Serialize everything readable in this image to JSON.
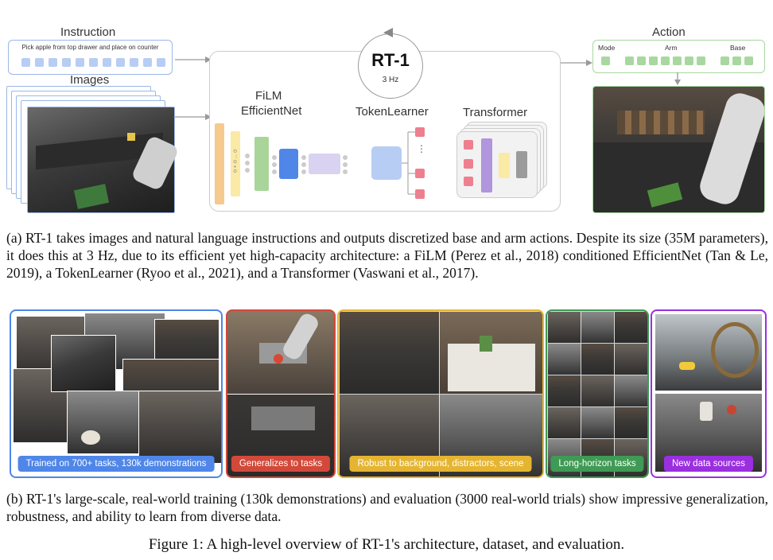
{
  "diagram": {
    "instruction": {
      "heading": "Instruction",
      "text": "Pick apple from top drawer and place on counter"
    },
    "images": {
      "heading": "Images"
    },
    "model": {
      "name": "RT-1",
      "rate": "3 Hz",
      "film_label_line1": "FiLM",
      "film_label_line2": "EfficientNet",
      "tokenlearner_label": "TokenLearner",
      "transformer_label": "Transformer",
      "film_vertical_text": "⊙ + ⊙ ... ⊙",
      "token_ellipsis": "⋮"
    },
    "action": {
      "heading": "Action",
      "mode_label": "Mode",
      "arm_label": "Arm",
      "base_label": "Base"
    },
    "colors": {
      "instruction_border": "#9ab8e6",
      "token_blue": "#b7cdf3",
      "action_green": "#a8d8a0",
      "film_orange": "#f6c98e",
      "film_yellow": "#fbe9a6",
      "film_green": "#a9d59a",
      "film_blue": "#4f86e8",
      "film_lavender": "#d9d2f0",
      "token_pink": "#ee7f8f",
      "transformer_purple": "#b195dd",
      "transformer_yellow": "#fbe9a6",
      "transformer_gray": "#9b9b9b"
    }
  },
  "caption_a": "(a) RT-1 takes images and natural language instructions and outputs discretized base and arm actions. Despite its size (35M parameters), it does this at 3 Hz, due to its efficient yet high-capacity architecture: a FiLM (Perez et al., 2018) conditioned EfficientNet (Tan & Le, 2019), a TokenLearner (Ryoo et al., 2021), and a Transformer (Vaswani et al., 2017).",
  "panels": [
    {
      "caption": "Trained on 700+ tasks, 130k demonstrations",
      "color": "#4f86e8"
    },
    {
      "caption": "Generalizes to tasks",
      "color": "#d2493a"
    },
    {
      "caption": "Robust to background, distractors, scene",
      "color": "#e5b531"
    },
    {
      "caption": "Long-horizon tasks",
      "color": "#3f9a55"
    },
    {
      "caption": "New data sources",
      "color": "#9a2fe0"
    }
  ],
  "caption_b": "(b) RT-1's large-scale, real-world training (130k demonstrations) and evaluation (3000 real-world trials) show impressive generalization, robustness, and ability to learn from diverse data.",
  "figure_caption": "Figure 1: A high-level overview of RT-1's architecture, dataset, and evaluation."
}
